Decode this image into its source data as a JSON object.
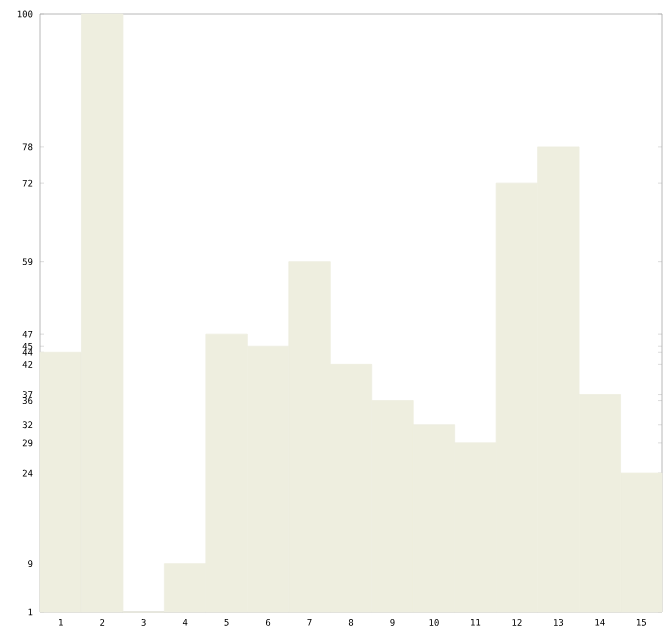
{
  "chart_data": {
    "type": "bar",
    "categories": [
      "1",
      "2",
      "3",
      "4",
      "5",
      "6",
      "7",
      "8",
      "9",
      "10",
      "11",
      "12",
      "13",
      "14",
      "15"
    ],
    "values": [
      44,
      100,
      1,
      9,
      47,
      45,
      59,
      42,
      36,
      32,
      29,
      72,
      78,
      37,
      24
    ],
    "color": "#eeeedf",
    "ylim": [
      1,
      100
    ],
    "yticks": [
      1,
      9,
      24,
      29,
      32,
      36,
      37,
      42,
      44,
      45,
      47,
      59,
      72,
      78,
      100
    ],
    "grid": false
  }
}
